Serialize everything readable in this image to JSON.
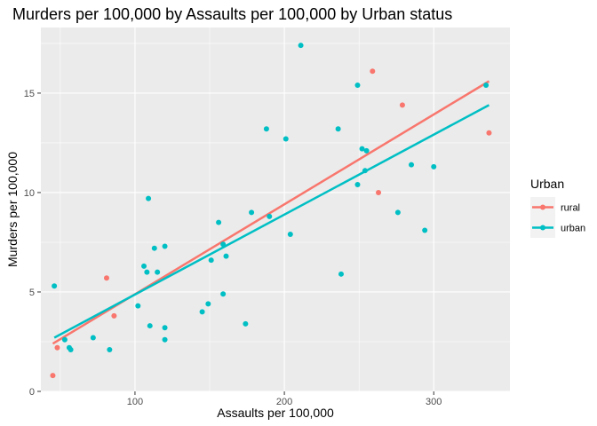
{
  "chart_data": {
    "type": "scatter",
    "title": "Murders per 100,000 by Assaults per 100,000 by Urban status",
    "xlabel": "Assaults per 100,000",
    "ylabel": "Murders per 100,000",
    "xlim": [
      37,
      351
    ],
    "ylim": [
      0,
      18.3
    ],
    "x_ticks": [
      100,
      200,
      300
    ],
    "x_minor_ticks": [
      50,
      150,
      250
    ],
    "y_ticks": [
      0,
      5,
      10,
      15
    ],
    "y_minor_ticks": [
      2.5,
      7.5,
      12.5,
      17.5
    ],
    "grid": true,
    "legend_position": "right",
    "legend_title": "Urban",
    "series": [
      {
        "name": "rural",
        "color": "#F8766D",
        "points": [
          [
            45,
            0.8
          ],
          [
            48,
            2.2
          ],
          [
            81,
            5.7
          ],
          [
            86,
            3.8
          ],
          [
            259,
            16.1
          ],
          [
            263,
            10.0
          ],
          [
            279,
            14.4
          ],
          [
            337,
            13.0
          ]
        ],
        "fit": [
          [
            45,
            2.4
          ],
          [
            337,
            15.6
          ]
        ]
      },
      {
        "name": "urban",
        "color": "#00BFC4",
        "points": [
          [
            46,
            5.3
          ],
          [
            53,
            2.6
          ],
          [
            56,
            2.2
          ],
          [
            57,
            2.1
          ],
          [
            72,
            2.7
          ],
          [
            83,
            2.1
          ],
          [
            102,
            4.3
          ],
          [
            106,
            6.3
          ],
          [
            109,
            9.7
          ],
          [
            108,
            6.0
          ],
          [
            110,
            3.3
          ],
          [
            113,
            7.2
          ],
          [
            115,
            6.0
          ],
          [
            120,
            7.3
          ],
          [
            120,
            3.2
          ],
          [
            120,
            2.6
          ],
          [
            145,
            4.0
          ],
          [
            149,
            4.4
          ],
          [
            151,
            6.6
          ],
          [
            156,
            8.5
          ],
          [
            159,
            7.4
          ],
          [
            159,
            4.9
          ],
          [
            161,
            6.8
          ],
          [
            174,
            3.4
          ],
          [
            178,
            9.0
          ],
          [
            188,
            13.2
          ],
          [
            190,
            8.8
          ],
          [
            201,
            12.7
          ],
          [
            204,
            7.9
          ],
          [
            211,
            17.4
          ],
          [
            236,
            13.2
          ],
          [
            238,
            5.9
          ],
          [
            249,
            10.4
          ],
          [
            249,
            15.4
          ],
          [
            252,
            12.2
          ],
          [
            255,
            12.1
          ],
          [
            254,
            11.1
          ],
          [
            276,
            9.0
          ],
          [
            285,
            11.4
          ],
          [
            294,
            8.1
          ],
          [
            300,
            11.3
          ],
          [
            335,
            15.4
          ]
        ],
        "fit": [
          [
            46,
            2.7
          ],
          [
            337,
            14.4
          ]
        ]
      }
    ]
  }
}
